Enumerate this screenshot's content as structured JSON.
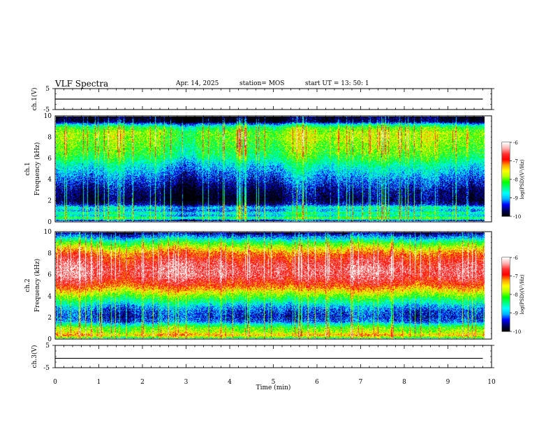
{
  "header": {
    "title": "VLF Spectra",
    "date": "Apr. 14, 2025",
    "station": "station= MOS",
    "start": "start  UT  =  13: 50: 1"
  },
  "colors": {
    "scale": [
      "#000000",
      "#000060",
      "#0000ff",
      "#00b4ff",
      "#00ffff",
      "#00ff80",
      "#00ff00",
      "#b4ff00",
      "#ffff00",
      "#ffa000",
      "#ff0000",
      "#ff3030",
      "#ffb0b0",
      "#ffffff"
    ]
  },
  "chart_data": [
    {
      "type": "line",
      "name": "ch1-waveform",
      "ylabel": "ch.1(V)",
      "ylim": [
        -5,
        5
      ],
      "yticks": [
        "5",
        "-5"
      ],
      "x": [
        0,
        9.8
      ],
      "y": [
        0,
        0
      ]
    },
    {
      "type": "heatmap",
      "name": "ch1-spectrogram",
      "ylabel": "ch.1\nFrequency (kHz)",
      "ylim": [
        0,
        10
      ],
      "yticks": [
        "0",
        "2",
        "4",
        "6",
        "8",
        "10"
      ],
      "colorbar": {
        "label": "log(PSD)(V²/Hz)",
        "range": [
          -10,
          -6
        ],
        "ticks": [
          "-6",
          "-7",
          "-8",
          "-9",
          "-10"
        ]
      },
      "profile_freq_khz": [
        0,
        0.3,
        0.5,
        0.8,
        1.0,
        1.3,
        1.6,
        2.0,
        2.5,
        3.0,
        3.5,
        4.0,
        4.5,
        5.0,
        5.5,
        6.0,
        6.5,
        7.0,
        7.5,
        8.0,
        8.5,
        9.0,
        9.3,
        9.5,
        9.7,
        10.0
      ],
      "profile_logpsd": [
        -9.6,
        -8.0,
        -8.8,
        -8.4,
        -9.0,
        -8.6,
        -9.5,
        -9.8,
        -9.7,
        -9.6,
        -9.4,
        -9.2,
        -9.0,
        -8.8,
        -8.6,
        -8.3,
        -8.1,
        -8.0,
        -7.9,
        -7.8,
        -7.8,
        -8.2,
        -9.0,
        -9.8,
        -9.9,
        -10.0
      ]
    },
    {
      "type": "heatmap",
      "name": "ch2-spectrogram",
      "ylabel": "ch.2\nFrequency (kHz)",
      "ylim": [
        0,
        10
      ],
      "yticks": [
        "0",
        "2",
        "4",
        "6",
        "8",
        "10"
      ],
      "colorbar": {
        "label": "log(PSD)(V²/Hz)",
        "range": [
          -10,
          -6
        ],
        "ticks": [
          "-6",
          "-7",
          "-8",
          "-9",
          "-10"
        ]
      },
      "profile_freq_khz": [
        0,
        0.3,
        0.6,
        1.0,
        1.3,
        1.6,
        2.0,
        2.5,
        3.0,
        3.5,
        4.0,
        4.5,
        5.0,
        5.5,
        6.0,
        6.5,
        7.0,
        7.5,
        8.0,
        8.5,
        9.0,
        9.5,
        9.8,
        10.0
      ],
      "profile_logpsd": [
        -8.4,
        -7.3,
        -7.8,
        -8.0,
        -8.6,
        -9.2,
        -9.4,
        -9.3,
        -9.0,
        -8.5,
        -8.0,
        -7.5,
        -7.0,
        -6.7,
        -6.5,
        -6.5,
        -6.6,
        -6.8,
        -7.1,
        -7.6,
        -8.2,
        -9.0,
        -9.5,
        -9.8
      ]
    },
    {
      "type": "line",
      "name": "ch3-waveform",
      "ylabel": "ch.3(V)",
      "ylim": [
        -5,
        5
      ],
      "yticks": [
        "5",
        "-5"
      ],
      "x": [
        0,
        9.8
      ],
      "y": [
        -0.8,
        -0.8
      ]
    }
  ],
  "xaxis": {
    "label": "Time (min)",
    "xlim": [
      0,
      10
    ],
    "ticks": [
      "0",
      "1",
      "2",
      "3",
      "4",
      "5",
      "6",
      "7",
      "8",
      "9",
      "10"
    ],
    "data_end_min": 9.82
  }
}
